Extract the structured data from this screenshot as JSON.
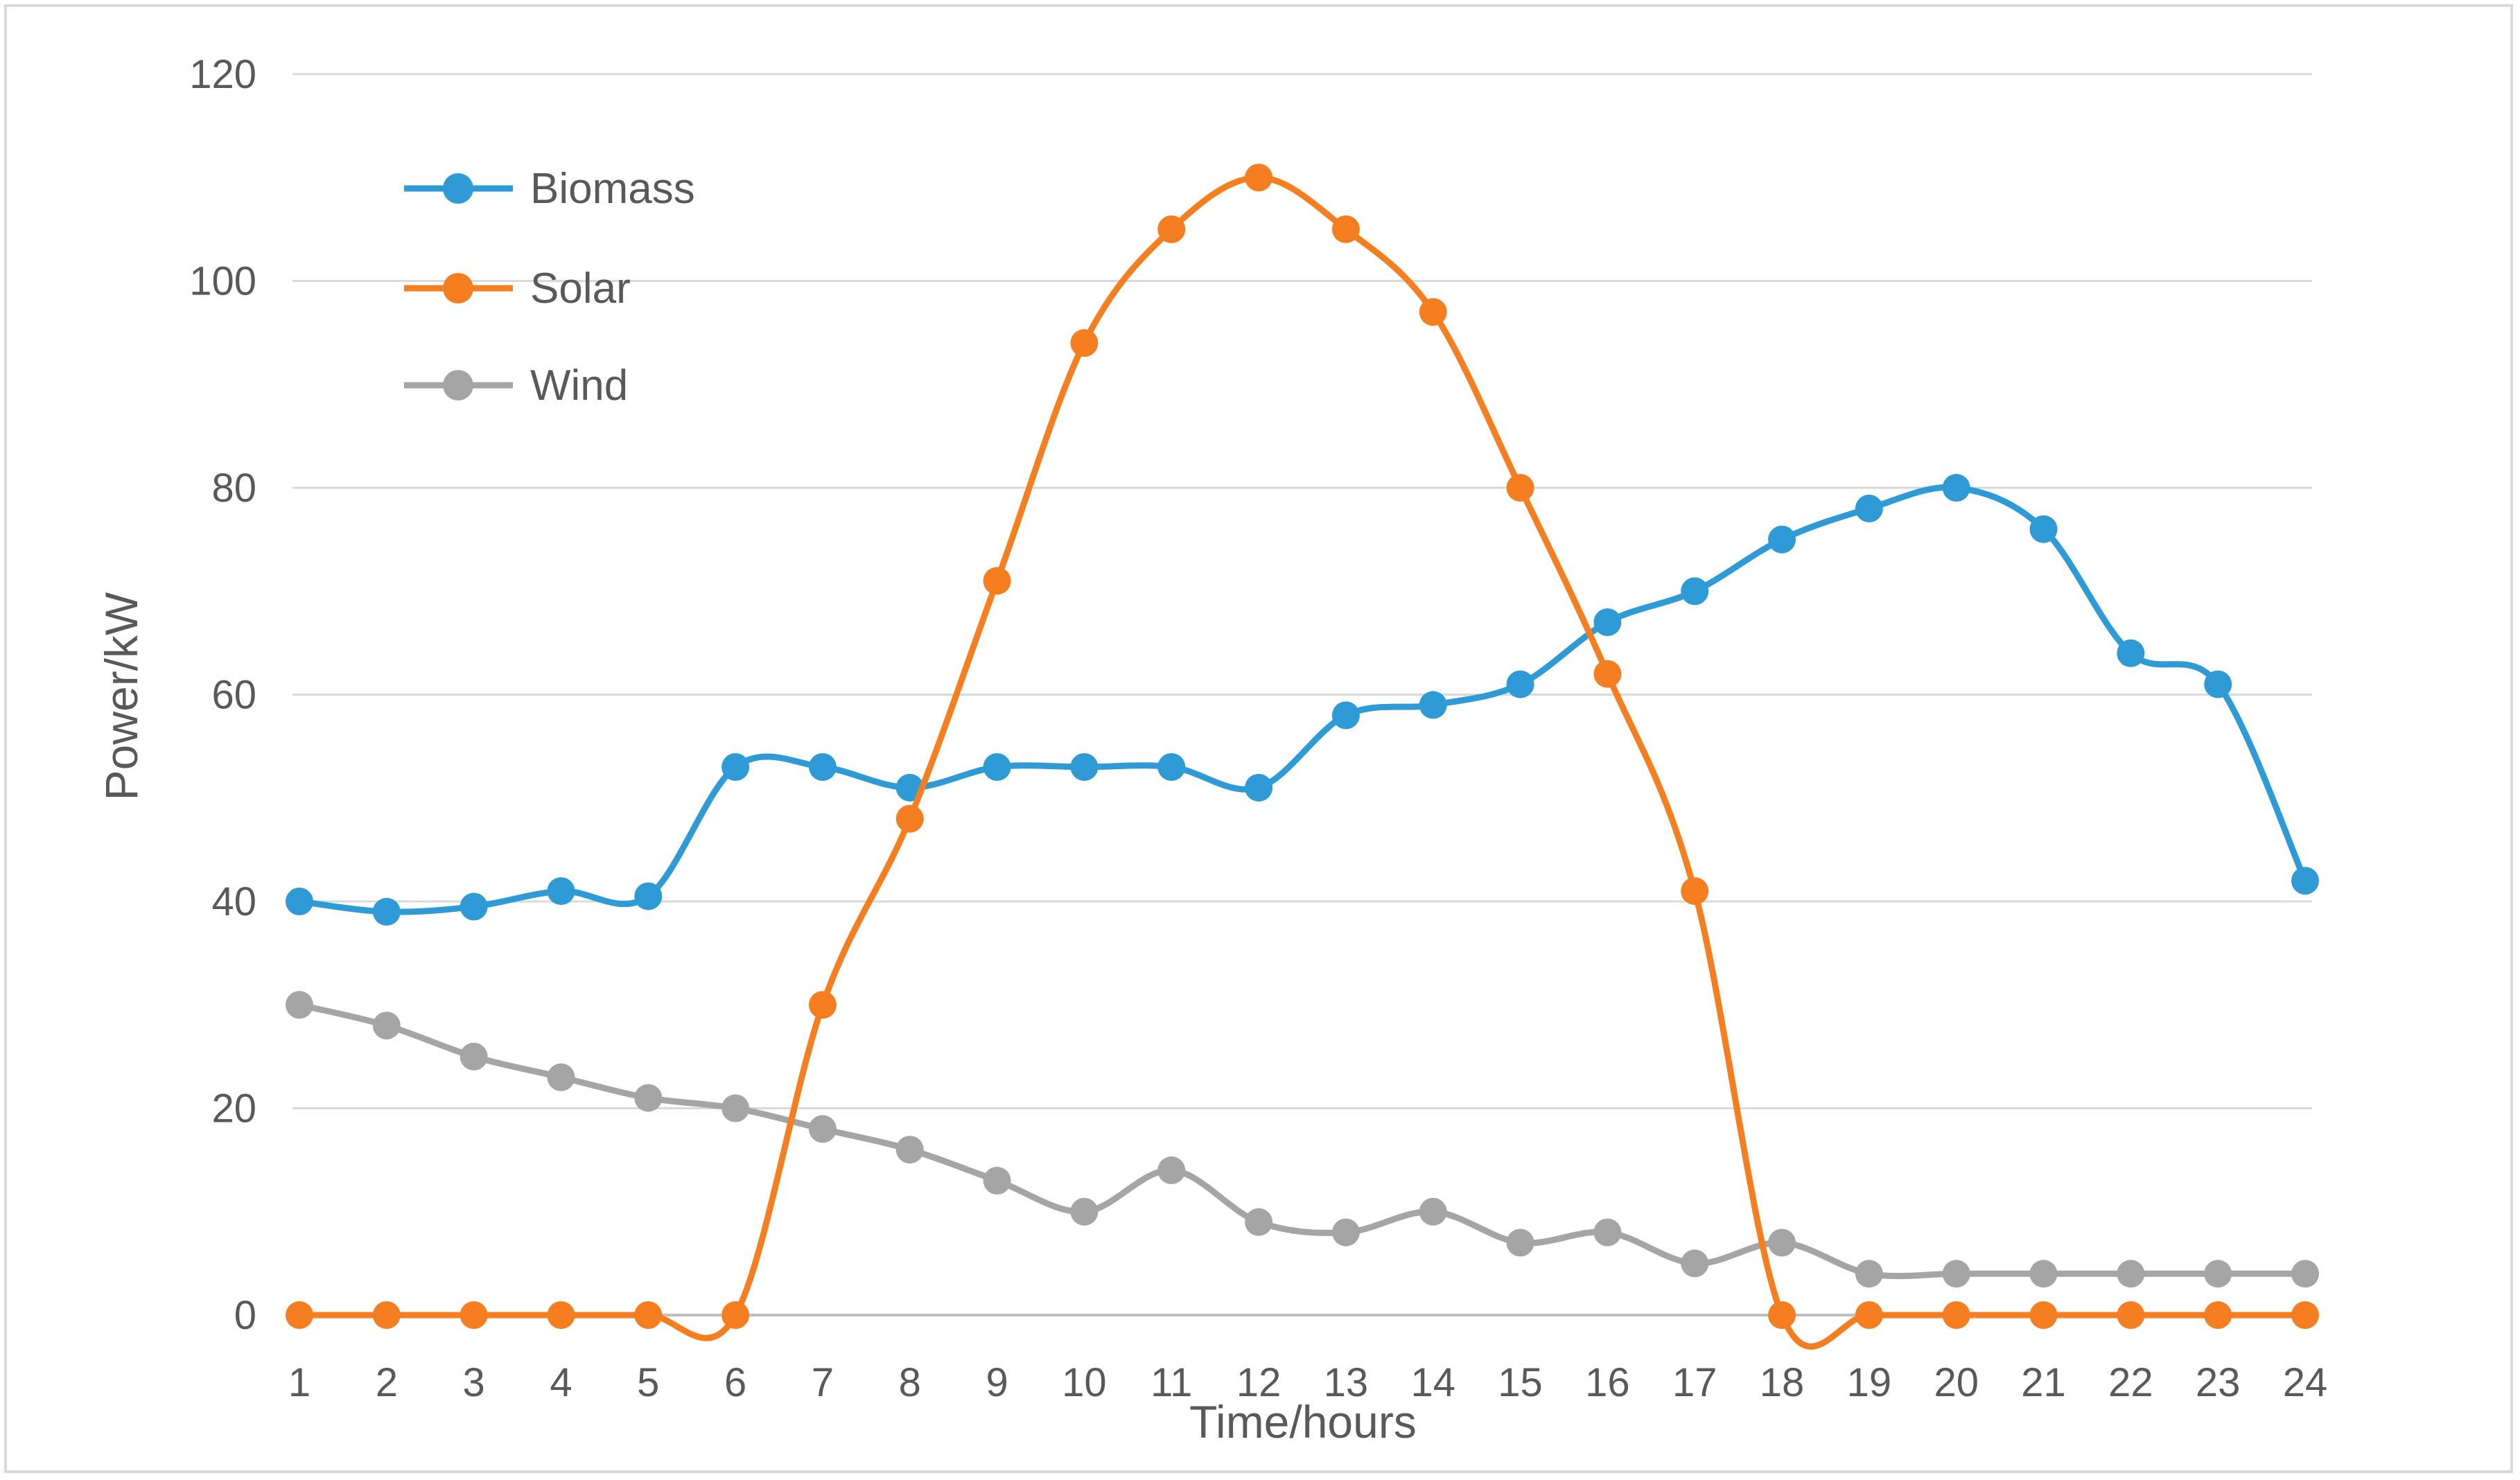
{
  "chart_data": {
    "type": "line",
    "title": "",
    "xlabel": "Time/hours",
    "ylabel": "Power/kW",
    "ylim": [
      0,
      120
    ],
    "yticks": [
      0,
      20,
      40,
      60,
      80,
      100,
      120
    ],
    "grid": true,
    "legend_position": "top-left",
    "categories": [
      "1",
      "2",
      "3",
      "4",
      "5",
      "6",
      "7",
      "8",
      "9",
      "10",
      "11",
      "12",
      "13",
      "14",
      "15",
      "16",
      "17",
      "18",
      "19",
      "20",
      "21",
      "22",
      "23",
      "24"
    ],
    "series": [
      {
        "name": "Biomass",
        "color": "#2e9bd6",
        "values": [
          40,
          39,
          39.5,
          41,
          40.5,
          53,
          53,
          51,
          53,
          53,
          53,
          51,
          58,
          59,
          61,
          67,
          70,
          75,
          78,
          80,
          76,
          64,
          61,
          42
        ]
      },
      {
        "name": "Solar",
        "color": "#f57f20",
        "values": [
          0,
          0,
          0,
          0,
          0,
          0,
          30,
          48,
          71,
          94,
          105,
          110,
          105,
          97,
          80,
          62,
          41,
          0,
          0,
          0,
          0,
          0,
          0,
          0
        ]
      },
      {
        "name": "Wind",
        "color": "#a5a5a5",
        "values": [
          30,
          28,
          25,
          23,
          21,
          20,
          18,
          16,
          13,
          10,
          14,
          9,
          8,
          10,
          7,
          8,
          5,
          7,
          4,
          4,
          4,
          4,
          4,
          4
        ]
      }
    ]
  }
}
